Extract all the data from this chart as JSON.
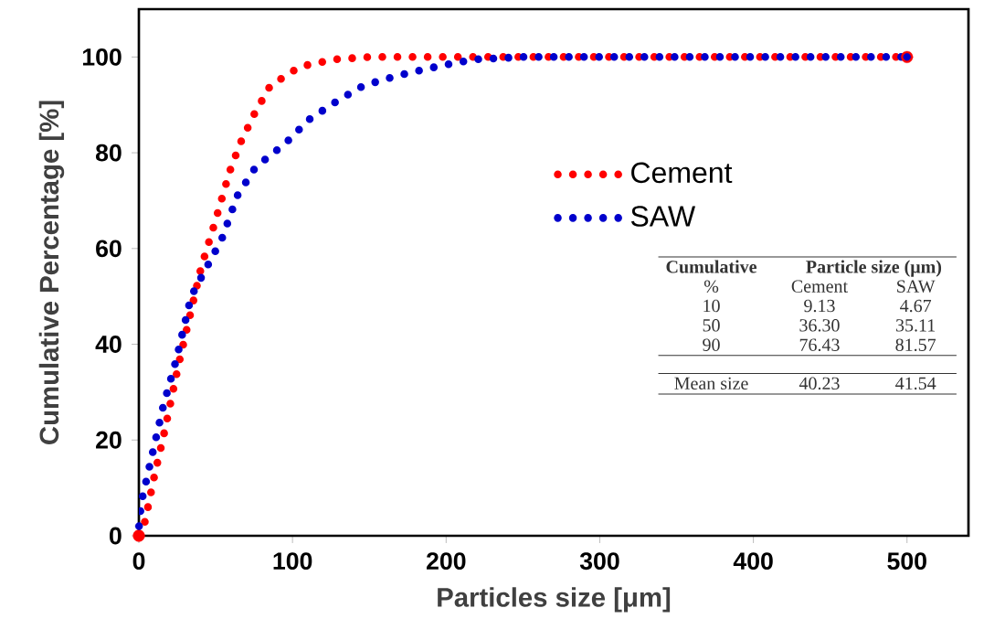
{
  "chart_data": {
    "type": "line",
    "xlabel": "Particles size [μm]",
    "ylabel": "Cumulative Percentage [%]",
    "xlim": [
      0,
      540
    ],
    "ylim": [
      0,
      110
    ],
    "xticks": [
      0,
      100,
      200,
      300,
      400,
      500
    ],
    "yticks": [
      0,
      20,
      40,
      60,
      80,
      100
    ],
    "grid": false,
    "legend": "right",
    "marker": "none",
    "line_style": "dotted",
    "series": [
      {
        "name": "Cement",
        "color": "#ff0000",
        "x": [
          0,
          4,
          10.4,
          15.5,
          26,
          40.5,
          50,
          59,
          66,
          75,
          85.5,
          105,
          127,
          150,
          200,
          300,
          400,
          500
        ],
        "values": [
          0,
          3,
          13,
          20,
          36,
          56,
          66,
          76,
          82,
          88,
          94,
          98,
          99.5,
          100,
          100,
          100,
          100,
          100
        ]
      },
      {
        "name": "SAW",
        "color": "#0000cc",
        "x": [
          0,
          1.6,
          8.7,
          15.8,
          24.5,
          34,
          44,
          54,
          64,
          76,
          95.5,
          111,
          130,
          146,
          167,
          194,
          218,
          250,
          300,
          400,
          500
        ],
        "values": [
          2,
          7,
          17,
          27,
          37,
          50,
          56,
          62,
          71,
          77,
          82,
          87,
          91,
          94,
          96,
          98,
          99.5,
          100,
          100,
          100,
          100
        ]
      }
    ],
    "annotations": [
      "Cumulative",
      "Particle size (μm)",
      "%",
      "Cement",
      "SAW",
      "10",
      "9.13",
      "4.67",
      "50",
      "36.30",
      "35.11",
      "90",
      "76.43",
      "81.57",
      "Mean size",
      "40.23",
      "41.54"
    ]
  }
}
